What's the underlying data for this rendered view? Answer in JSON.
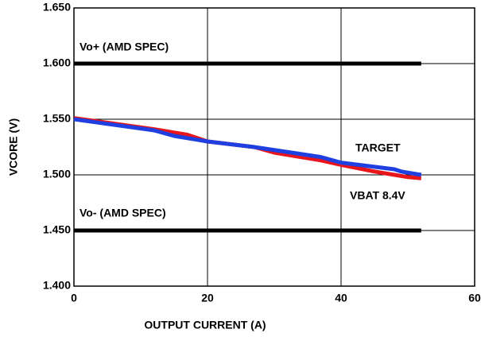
{
  "chart_data": {
    "type": "line",
    "x_label": "OUTPUT CURRENT (A)",
    "y_label": "VCORE (V)",
    "xlim": [
      0,
      60
    ],
    "xticks": [
      0,
      20,
      40,
      60
    ],
    "ylim": [
      1.4,
      1.65
    ],
    "yticks": [
      {
        "value": 1.4,
        "label": "1.400"
      },
      {
        "value": 1.45,
        "label": "1.450"
      },
      {
        "value": 1.5,
        "label": "1.500"
      },
      {
        "value": 1.55,
        "label": "1.550"
      },
      {
        "value": 1.6,
        "label": "1.600"
      },
      {
        "value": 1.65,
        "label": "1.650"
      }
    ],
    "grid": true,
    "series": [
      {
        "name": "Vo+ (AMD SPEC)",
        "color": "#000000",
        "x": [
          0,
          52
        ],
        "values": [
          1.6,
          1.6
        ]
      },
      {
        "name": "Vo- (AMD SPEC)",
        "color": "#000000",
        "x": [
          0,
          52
        ],
        "values": [
          1.45,
          1.45
        ]
      },
      {
        "name": "VBAT 8.4V",
        "color": "#e8151c",
        "x": [
          0,
          12,
          17,
          20,
          27,
          30,
          37,
          40,
          45,
          48,
          50,
          52
        ],
        "values": [
          1.551,
          1.541,
          1.536,
          1.53,
          1.525,
          1.52,
          1.513,
          1.509,
          1.503,
          1.5,
          1.498,
          1.497
        ]
      },
      {
        "name": "TARGET",
        "color": "#1f3fe0",
        "x": [
          0,
          12,
          15,
          20,
          27,
          37,
          40,
          48,
          49,
          52
        ],
        "values": [
          1.55,
          1.54,
          1.535,
          1.53,
          1.525,
          1.516,
          1.511,
          1.505,
          1.503,
          1.5
        ]
      }
    ]
  }
}
